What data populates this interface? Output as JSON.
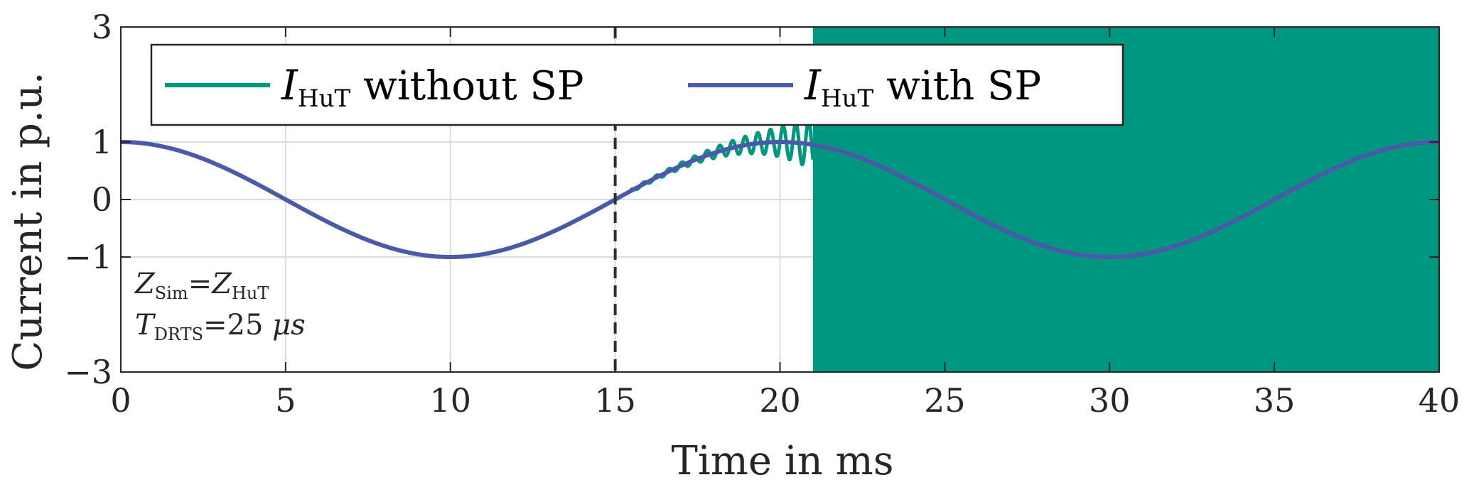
{
  "chart_data": {
    "type": "line",
    "xlabel": "Time in ms",
    "ylabel": "Current in p.u.",
    "xlim": [
      0,
      40
    ],
    "ylim": [
      -3,
      3
    ],
    "x_ticks": [
      0,
      5,
      10,
      15,
      20,
      25,
      30,
      35,
      40
    ],
    "y_ticks": [
      -3,
      -1,
      0,
      1,
      3
    ],
    "y_tick_labels": [
      "−3",
      "−1",
      "0",
      "1",
      "3"
    ],
    "grid": true,
    "legend_position": "top",
    "vertical_marker_x": 15,
    "series": [
      {
        "name": "without SP",
        "symbol": "I",
        "subscript": "HuT",
        "color": "#009781",
        "stable_until": 15,
        "instability_onset": 15.5,
        "saturated_from": 21,
        "saturation_range": [
          -3,
          3
        ],
        "sample_x": [
          0,
          5,
          10,
          15,
          16,
          17,
          18,
          19,
          20,
          20.5,
          21,
          25,
          30,
          35,
          40
        ],
        "sample_y": [
          1,
          0,
          -1,
          0,
          0.35,
          0.4,
          0.7,
          1.4,
          3,
          -2.0,
          3,
          3,
          -3,
          3,
          3
        ]
      },
      {
        "name": "with SP",
        "symbol": "I",
        "subscript": "HuT",
        "color": "#4a59a8",
        "function": "cos(2*pi*50Hz*t)",
        "sample_x": [
          0,
          5,
          10,
          15,
          20,
          25,
          30,
          35,
          40
        ],
        "sample_y": [
          1,
          0,
          -1,
          0,
          1,
          0,
          -1,
          0,
          1
        ]
      }
    ],
    "annotations": [
      {
        "lhs_symbol": "Z",
        "lhs_sub": "Sim",
        "op": "=",
        "rhs_symbol": "Z",
        "rhs_sub": "HuT",
        "rhs_unit": ""
      },
      {
        "lhs_symbol": "T",
        "lhs_sub": "DRTS",
        "op": "=",
        "rhs_symbol": "25 ",
        "rhs_sub": "",
        "rhs_unit": "μs"
      }
    ]
  }
}
